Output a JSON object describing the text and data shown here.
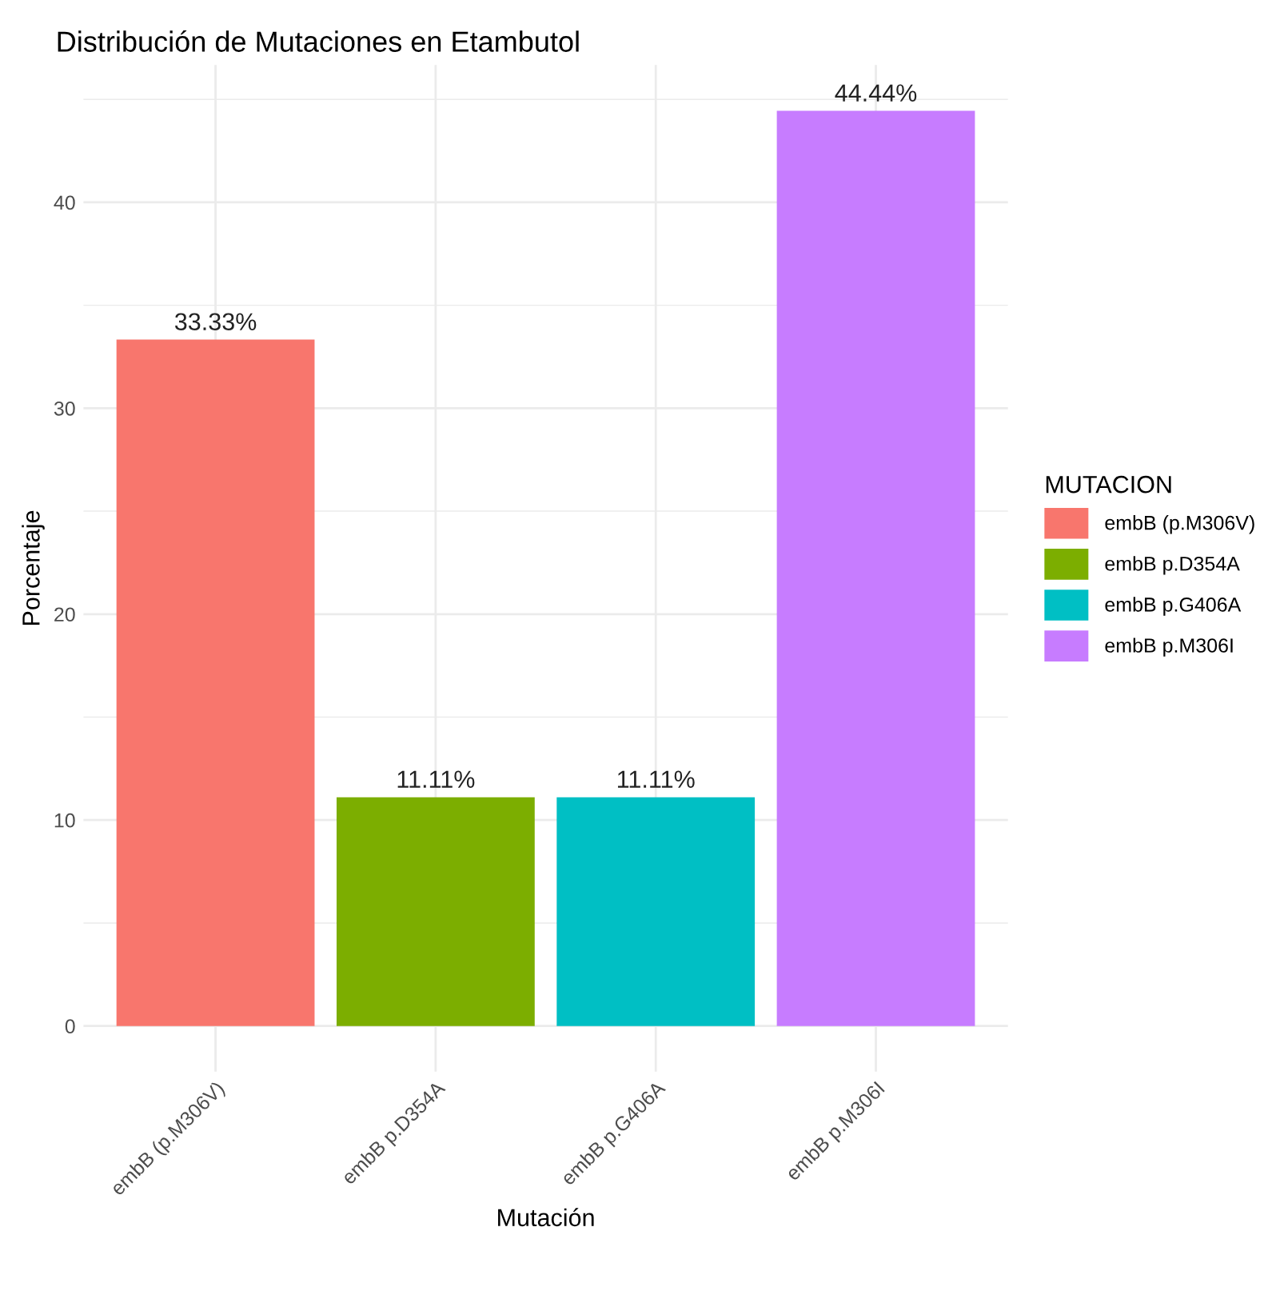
{
  "chart_data": {
    "type": "bar",
    "title": "Distribución de Mutaciones en Etambutol",
    "xlabel": "Mutación",
    "ylabel": "Porcentaje",
    "legend_title": "MUTACION",
    "categories": [
      "embB (p.M306V)",
      "embB p.D354A",
      "embB p.G406A",
      "embB p.M306I"
    ],
    "series": [
      {
        "name": "embB (p.M306V)",
        "color": "#f8766d",
        "values": [
          33.33,
          null,
          null,
          null
        ],
        "value_labels": [
          "33.33%",
          null,
          null,
          null
        ]
      },
      {
        "name": "embB p.D354A",
        "color": "#7cae00",
        "values": [
          null,
          11.11,
          null,
          null
        ],
        "value_labels": [
          null,
          "11.11%",
          null,
          null
        ]
      },
      {
        "name": "embB p.G406A",
        "color": "#00bfc4",
        "values": [
          null,
          null,
          11.11,
          null
        ],
        "value_labels": [
          null,
          null,
          "11.11%",
          null
        ]
      },
      {
        "name": "embB p.M306I",
        "color": "#c77cff",
        "values": [
          null,
          null,
          null,
          44.44
        ],
        "value_labels": [
          null,
          null,
          null,
          "44.44%"
        ]
      }
    ],
    "ylim": [
      -2.22,
      46.67
    ],
    "yticks": [
      0,
      {
        "value": 5,
        "label": null
      },
      10,
      {
        "value": 15,
        "label": null
      },
      20,
      {
        "value": 25,
        "label": null
      },
      30,
      {
        "value": 35,
        "label": null
      },
      40,
      {
        "value": 45,
        "label": null
      }
    ],
    "grid": true,
    "legend": "right"
  }
}
